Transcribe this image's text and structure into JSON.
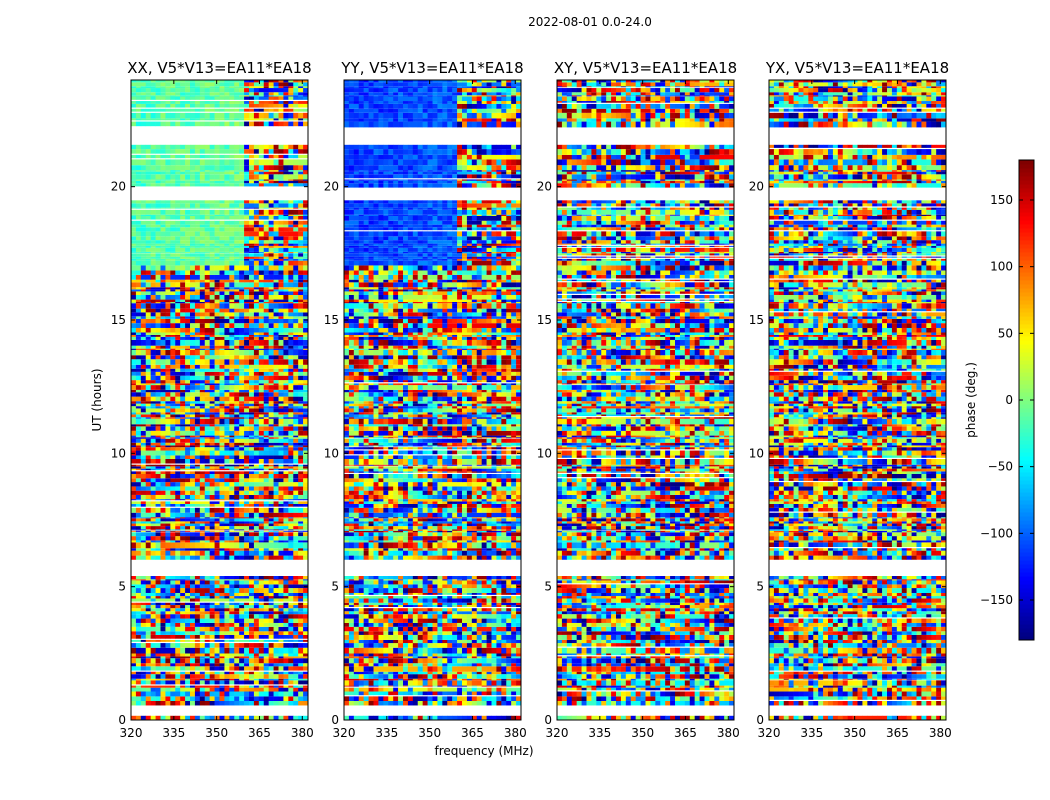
{
  "figure_title": "2022-08-01 0.0-24.0",
  "chart_data": {
    "type": "heatmap",
    "xlabel": "frequency (MHz)",
    "ylabel": "UT (hours)",
    "xlim": [
      320,
      382
    ],
    "ylim": [
      0,
      24
    ],
    "x_ticks": [
      320,
      335,
      350,
      365,
      380
    ],
    "y_ticks": [
      0,
      5,
      10,
      15,
      20
    ],
    "panels": [
      {
        "title": "XX, V5*V13=EA11*EA18",
        "polarization": "XX"
      },
      {
        "title": "YY, V5*V13=EA11*EA18",
        "polarization": "YY"
      },
      {
        "title": "XY, V5*V13=EA11*EA18",
        "polarization": "XY"
      },
      {
        "title": "YX, V5*V13=EA11*EA18",
        "polarization": "YX"
      }
    ],
    "colorbar": {
      "label": "phase (deg.)",
      "colormap": "jet",
      "range": [
        -180,
        180
      ],
      "ticks": [
        150,
        100,
        50,
        0,
        -50,
        -100,
        -150
      ],
      "tick_labels": [
        "150",
        "100",
        "50",
        "0",
        "−50",
        "−100",
        "−150"
      ]
    },
    "blank_time_ranges_hours": [
      [
        21.6,
        22.2
      ],
      [
        19.6,
        19.9
      ],
      [
        5.5,
        6.0
      ],
      [
        0.3,
        0.5
      ]
    ]
  }
}
